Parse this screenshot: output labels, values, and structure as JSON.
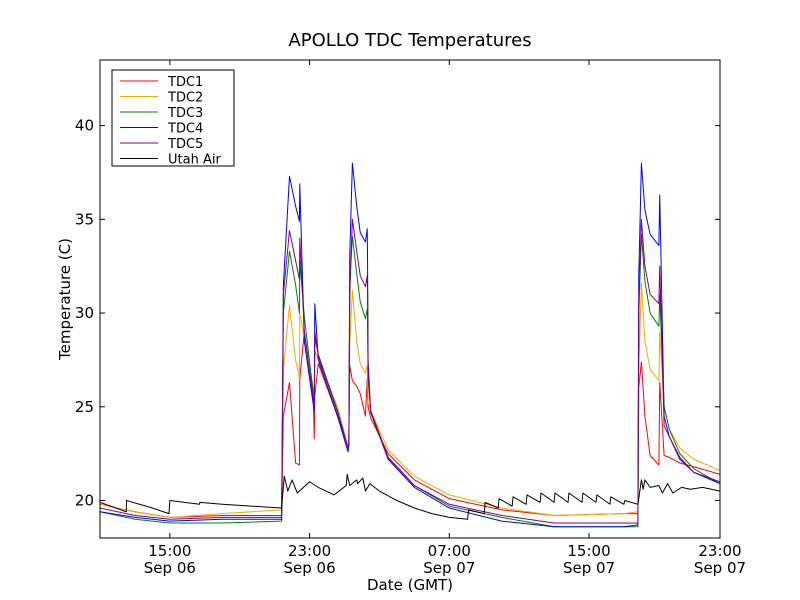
{
  "chart_data": {
    "type": "line",
    "title": "APOLLO TDC Temperatures",
    "xlabel": "Date (GMT)",
    "ylabel": "Temperature (C)",
    "xlim": [
      11,
      46.5
    ],
    "ylim": [
      18,
      43.5
    ],
    "x_unit": "hours since Sep 06 00:00 GMT",
    "yticks": [
      20,
      25,
      30,
      35,
      40
    ],
    "xticks": [
      {
        "x": 15,
        "line1": "15:00",
        "line2": "Sep 06"
      },
      {
        "x": 23,
        "line1": "23:00",
        "line2": "Sep 06"
      },
      {
        "x": 31,
        "line1": "07:00",
        "line2": "Sep 07"
      },
      {
        "x": 39,
        "line1": "15:00",
        "line2": "Sep 07"
      },
      {
        "x": 47,
        "line1": "23:00",
        "line2": "Sep 07"
      }
    ],
    "legend_position": "upper-left",
    "series": [
      {
        "name": "TDC1",
        "color": "#ff0000",
        "x": [
          11,
          13,
          15,
          18,
          21.4,
          21.5,
          21.85,
          22.2,
          22.42,
          22.44,
          22.7,
          23.2,
          23.27,
          23.3,
          23.5,
          24.6,
          25.2,
          25.25,
          25.3,
          25.45,
          25.7,
          25.9,
          26.2,
          26.3,
          26.32,
          26.35,
          26.5,
          27.5,
          29,
          31,
          34,
          37,
          41,
          41.8,
          41.85,
          42.0,
          42.2,
          42.5,
          43.0,
          43.05,
          43.3,
          43.6,
          44.2,
          45,
          46.5
        ],
        "y": [
          19.8,
          19.4,
          19.1,
          19.2,
          19.2,
          24.5,
          26.3,
          22.0,
          21.9,
          26.5,
          29.0,
          25.8,
          23.3,
          25.6,
          27.3,
          24.5,
          22.9,
          23.1,
          27.2,
          26.4,
          26.1,
          25.7,
          24.5,
          26.5,
          25.6,
          25.0,
          24.4,
          22.5,
          21.1,
          20.1,
          19.5,
          19.2,
          19.3,
          19.3,
          26.0,
          27.4,
          24.5,
          22.4,
          21.9,
          26.3,
          22.4,
          22.3,
          22.0,
          21.8,
          21.4
        ]
      },
      {
        "name": "TDC2",
        "color": "#ffa500",
        "x": [
          11,
          13,
          15,
          18,
          21.4,
          21.5,
          21.85,
          22.2,
          22.42,
          22.44,
          22.7,
          23.2,
          23.27,
          23.3,
          23.5,
          24.6,
          25.2,
          25.25,
          25.3,
          25.45,
          25.7,
          25.9,
          26.2,
          26.3,
          26.32,
          26.35,
          26.5,
          27.5,
          29,
          31,
          34,
          37,
          41,
          41.8,
          41.85,
          42.0,
          42.2,
          42.5,
          43.0,
          43.05,
          43.3,
          43.6,
          44.2,
          45,
          46.5
        ],
        "y": [
          19.8,
          19.4,
          19.1,
          19.3,
          19.5,
          27.0,
          30.4,
          27.5,
          26.5,
          30.0,
          28.7,
          26.1,
          25.6,
          28.0,
          27.5,
          25.0,
          22.9,
          23.3,
          28.3,
          31.2,
          28.5,
          27.3,
          26.8,
          27.2,
          26.5,
          25.2,
          24.8,
          22.7,
          21.3,
          20.3,
          19.6,
          19.2,
          19.3,
          19.4,
          27.0,
          31.6,
          28.5,
          27.0,
          26.4,
          29.0,
          25.0,
          23.8,
          22.8,
          22.2,
          21.6
        ]
      },
      {
        "name": "TDC3",
        "color": "#008000",
        "x": [
          11,
          13,
          15,
          18,
          21.4,
          21.5,
          21.85,
          22.2,
          22.42,
          22.44,
          22.7,
          23.2,
          23.27,
          23.3,
          23.5,
          24.6,
          25.2,
          25.25,
          25.3,
          25.45,
          25.7,
          25.9,
          26.2,
          26.3,
          26.32,
          26.35,
          26.5,
          27.5,
          29,
          31,
          34,
          37,
          41,
          41.8,
          41.85,
          42.0,
          42.2,
          42.5,
          43.0,
          43.05,
          43.3,
          43.6,
          44.2,
          45,
          46.5
        ],
        "y": [
          19.4,
          19.0,
          18.8,
          18.8,
          18.9,
          30.0,
          33.3,
          31.5,
          30.0,
          32.8,
          29.8,
          25.8,
          25.3,
          28.7,
          27.8,
          24.8,
          22.8,
          23.1,
          31.5,
          34.1,
          32.1,
          30.6,
          29.7,
          30.2,
          29.8,
          26.5,
          24.8,
          22.3,
          20.8,
          19.7,
          19.1,
          18.6,
          18.6,
          18.6,
          30.0,
          34.2,
          31.7,
          30.0,
          29.3,
          31.0,
          25.0,
          23.8,
          22.5,
          21.7,
          20.9
        ]
      },
      {
        "name": "TDC4",
        "color": "#0000ff",
        "x": [
          11,
          13,
          15,
          18,
          21.4,
          21.5,
          21.85,
          22.2,
          22.42,
          22.44,
          22.7,
          23.2,
          23.27,
          23.3,
          23.5,
          24.6,
          25.2,
          25.25,
          25.3,
          25.45,
          25.7,
          25.9,
          26.2,
          26.3,
          26.32,
          26.35,
          26.5,
          27.5,
          29,
          31,
          34,
          37,
          41,
          41.8,
          41.85,
          42.0,
          42.2,
          42.5,
          43.0,
          43.05,
          43.3,
          43.6,
          44.2,
          45,
          46.5
        ],
        "y": [
          19.4,
          19.1,
          18.9,
          19.0,
          19.0,
          31.5,
          37.3,
          35.7,
          34.9,
          36.9,
          28.5,
          25.2,
          24.8,
          30.5,
          27.5,
          24.5,
          22.6,
          22.9,
          33.0,
          38.0,
          35.7,
          34.3,
          33.8,
          34.5,
          32.8,
          27.5,
          24.7,
          22.2,
          20.7,
          19.6,
          18.9,
          18.6,
          18.6,
          18.7,
          32.0,
          38.0,
          35.5,
          34.2,
          33.6,
          36.3,
          24.5,
          23.4,
          22.2,
          21.5,
          20.9
        ]
      },
      {
        "name": "TDC5",
        "color": "#800080",
        "x": [
          11,
          13,
          15,
          18,
          21.4,
          21.5,
          21.85,
          22.2,
          22.42,
          22.44,
          22.7,
          23.2,
          23.27,
          23.3,
          23.5,
          24.6,
          25.2,
          25.25,
          25.3,
          25.45,
          25.7,
          25.9,
          26.2,
          26.3,
          26.32,
          26.35,
          26.5,
          27.5,
          29,
          31,
          34,
          37,
          41,
          41.8,
          41.85,
          42.0,
          42.2,
          42.5,
          43.0,
          43.05,
          43.3,
          43.6,
          44.2,
          45,
          46.5
        ],
        "y": [
          19.6,
          19.2,
          19.0,
          19.1,
          19.1,
          31.0,
          34.4,
          32.8,
          31.8,
          34.0,
          29.0,
          25.5,
          25.0,
          29.0,
          27.7,
          24.7,
          22.8,
          23.0,
          31.0,
          35.0,
          33.3,
          32.0,
          31.4,
          32.0,
          31.0,
          27.0,
          24.7,
          22.3,
          20.8,
          19.8,
          19.2,
          18.8,
          18.8,
          18.8,
          30.5,
          35.0,
          32.5,
          31.0,
          30.5,
          32.5,
          24.0,
          23.4,
          22.3,
          21.5,
          21.0
        ]
      },
      {
        "name": "Utah Air",
        "color": "#000000",
        "x": [
          11,
          12.5,
          12.52,
          14,
          14.95,
          15,
          16.7,
          16.72,
          18,
          21.4,
          21.55,
          21.75,
          22,
          22.3,
          23,
          23.5,
          24.4,
          25.1,
          25.15,
          25.3,
          25.7,
          25.75,
          26.05,
          26.2,
          26.45,
          27,
          28,
          29,
          30,
          31,
          32.05,
          32.1,
          33,
          33.05,
          33.8,
          33.85,
          34.6,
          34.65,
          35.4,
          35.45,
          36.2,
          36.25,
          37,
          37.05,
          37.8,
          37.85,
          38.6,
          38.65,
          39.4,
          39.45,
          40.2,
          40.25,
          41,
          41.05,
          41.8,
          42.0,
          42.1,
          42.2,
          42.5,
          43,
          43.2,
          43.5,
          43.8,
          44.3,
          44.8,
          45.5,
          46,
          46.5
        ],
        "y": [
          19.9,
          19.4,
          20.0,
          19.6,
          19.3,
          20.0,
          19.8,
          19.9,
          19.8,
          19.6,
          21.3,
          20.5,
          21.1,
          20.4,
          21.0,
          20.7,
          20.3,
          20.8,
          21.4,
          20.8,
          21.1,
          20.9,
          21.2,
          20.5,
          20.9,
          20.5,
          20.0,
          19.6,
          19.3,
          19.1,
          19.0,
          19.5,
          19.3,
          19.9,
          19.6,
          20.1,
          19.7,
          20.2,
          19.8,
          20.3,
          19.9,
          20.4,
          19.9,
          20.4,
          19.9,
          20.4,
          19.9,
          20.4,
          19.9,
          20.3,
          19.8,
          20.2,
          19.8,
          20.0,
          19.8,
          21.1,
          20.6,
          21.1,
          20.7,
          20.8,
          20.4,
          20.9,
          20.4,
          20.7,
          20.6,
          20.7,
          20.6,
          20.5
        ]
      }
    ]
  }
}
